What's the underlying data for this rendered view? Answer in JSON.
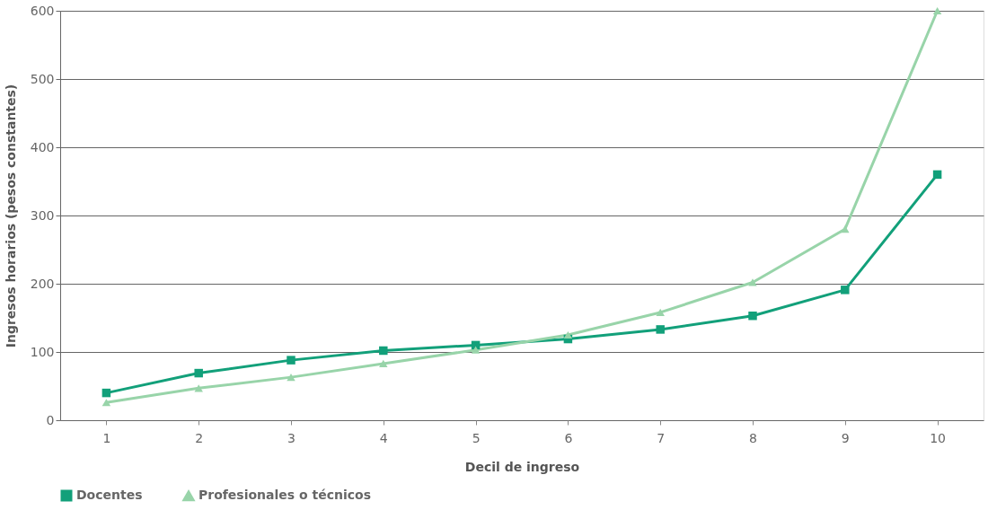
{
  "chart_data": {
    "type": "line",
    "xlabel": "Decil de ingreso",
    "ylabel": "Ingresos horarios  (pesos constantes)",
    "categories": [
      "1",
      "2",
      "3",
      "4",
      "5",
      "6",
      "7",
      "8",
      "9",
      "10"
    ],
    "series": [
      {
        "name": "Docentes",
        "color": "#12a07a",
        "marker": "square",
        "values": [
          40,
          69,
          88,
          102,
          110,
          119,
          133,
          153,
          191,
          360
        ]
      },
      {
        "name": "Profesionales o técnicos",
        "color": "#98d4a9",
        "marker": "triangle",
        "values": [
          26,
          47,
          63,
          83,
          103,
          125,
          158,
          202,
          280,
          600
        ]
      }
    ],
    "ylim": [
      0,
      600
    ],
    "yticks": [
      0,
      100,
      200,
      300,
      400,
      500,
      600
    ],
    "grid": "y",
    "legend": "bottom"
  }
}
